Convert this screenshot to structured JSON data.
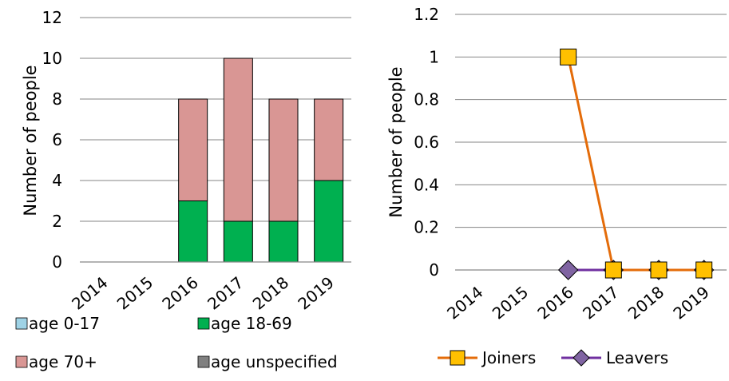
{
  "chart_data": [
    {
      "type": "bar",
      "stacked": true,
      "categories": [
        "2014",
        "2015",
        "2016",
        "2017",
        "2018",
        "2019"
      ],
      "series": [
        {
          "name": "age 0-17",
          "color": "#9fd3e6",
          "values": [
            0,
            0,
            0,
            0,
            0,
            0
          ]
        },
        {
          "name": "age 18-69",
          "color": "#00b050",
          "values": [
            0,
            0,
            3,
            2,
            2,
            4
          ]
        },
        {
          "name": "age 70+",
          "color": "#d99694",
          "values": [
            0,
            0,
            5,
            8,
            6,
            4
          ]
        },
        {
          "name": "age unspecified",
          "color": "#808080",
          "values": [
            0,
            0,
            0,
            0,
            0,
            0
          ]
        }
      ],
      "ylabel": "Number of people",
      "ylim": [
        0,
        12
      ],
      "yticks": [
        "0",
        "2",
        "4",
        "6",
        "8",
        "10",
        "12"
      ],
      "grid": true,
      "legend": "bottom"
    },
    {
      "type": "line",
      "categories": [
        "2014",
        "2015",
        "2016",
        "2017",
        "2018",
        "2019"
      ],
      "series": [
        {
          "name": "Joiners",
          "color": "#e46c0a",
          "marker": "square",
          "marker_color": "#ffc000",
          "values": [
            null,
            null,
            1,
            0,
            0,
            0
          ]
        },
        {
          "name": "Leavers",
          "color": "#7030a0",
          "marker": "diamond",
          "marker_color": "#8064a2",
          "values": [
            null,
            null,
            0,
            0,
            0,
            0
          ]
        }
      ],
      "ylabel": "Number of people",
      "ylim": [
        0,
        1.2
      ],
      "yticks": [
        "0",
        "0.2",
        "0.4",
        "0.6",
        "0.8",
        "1",
        "1.2"
      ],
      "grid": true,
      "legend": "bottom"
    }
  ]
}
